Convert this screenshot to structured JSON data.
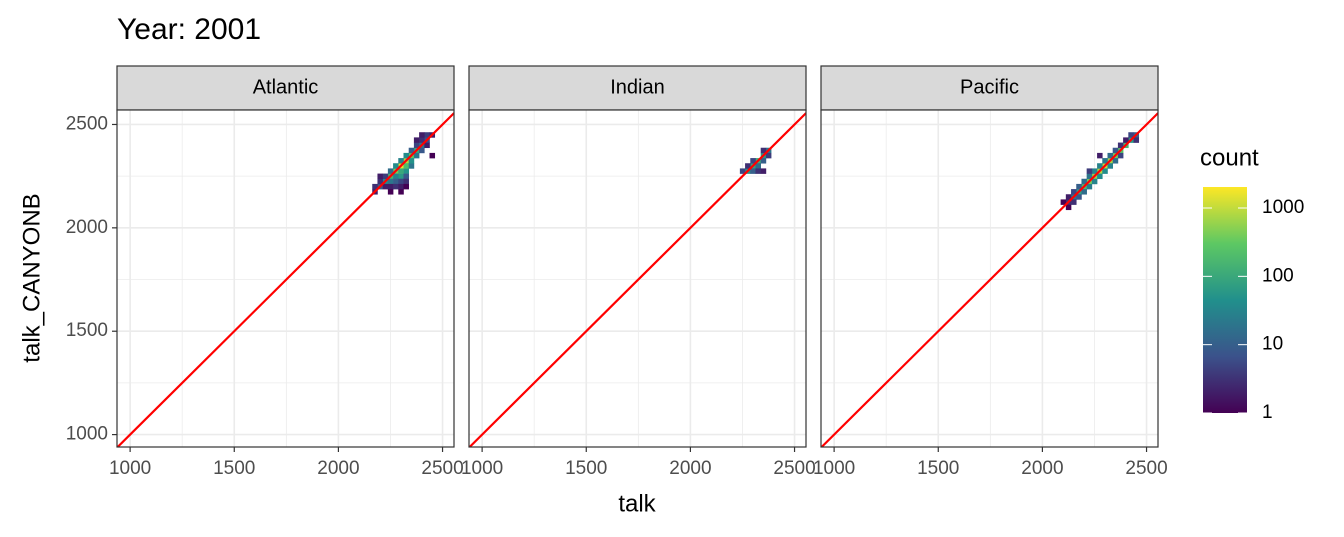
{
  "chart_data": {
    "type": "bin2d",
    "title": "Year: 2001",
    "x_label": "talk",
    "y_label": "talk_CANYONB",
    "xlim": [
      937,
      2555
    ],
    "ylim": [
      940,
      2570
    ],
    "xticks": [
      1000,
      1500,
      2000,
      2500
    ],
    "yticks": [
      1000,
      1500,
      2000,
      2500
    ],
    "xminor": [
      1250,
      1750,
      2250
    ],
    "yminor": [
      1250,
      1750,
      2250
    ],
    "grid": true,
    "binwidth": [
      25,
      25
    ],
    "reference_line": {
      "slope": 1,
      "intercept": 0,
      "color": "#ff0000"
    },
    "color_scale": {
      "title": "count",
      "log": true,
      "limits": [
        1,
        2030
      ],
      "breaks": [
        1,
        10,
        100,
        1000
      ],
      "colors": [
        "#440154",
        "#3b528b",
        "#21908c",
        "#5dc863",
        "#fde725"
      ]
    },
    "facets": [
      {
        "title": "Atlantic",
        "x": [
          2300,
          2325,
          2275,
          2350,
          2250,
          2375,
          2225,
          2400,
          2200,
          2175,
          2175,
          2425,
          2450,
          2425,
          2450,
          2300,
          2325,
          2275,
          2300,
          2325,
          2275,
          2300,
          2250,
          2325,
          2350,
          2350,
          2325,
          2375,
          2350,
          2375,
          2400,
          2400,
          2250,
          2275,
          2300,
          2275,
          2250,
          2300,
          2325,
          2225,
          2200,
          2225,
          2200,
          2325,
          2250,
          2300,
          2375,
          2400,
          2425
        ],
        "y": [
          2300,
          2325,
          2275,
          2350,
          2250,
          2375,
          2225,
          2400,
          2200,
          2200,
          2175,
          2450,
          2450,
          2425,
          2350,
          2250,
          2275,
          2250,
          2275,
          2300,
          2300,
          2325,
          2275,
          2250,
          2300,
          2325,
          2350,
          2350,
          2375,
          2400,
          2375,
          2425,
          2225,
          2225,
          2225,
          2200,
          2200,
          2200,
          2225,
          2250,
          2225,
          2200,
          2250,
          2200,
          2175,
          2175,
          2425,
          2450,
          2400
        ],
        "count": [
          1500,
          800,
          400,
          300,
          150,
          100,
          40,
          20,
          10,
          3,
          2,
          4,
          2,
          6,
          1,
          60,
          50,
          30,
          100,
          200,
          40,
          30,
          15,
          8,
          20,
          50,
          40,
          20,
          10,
          5,
          8,
          3,
          20,
          10,
          5,
          3,
          2,
          2,
          3,
          4,
          3,
          2,
          2,
          1,
          1,
          1,
          2,
          2,
          2
        ]
      },
      {
        "title": "Indian",
        "x": [
          2275,
          2300,
          2325,
          2350,
          2375,
          2325,
          2350,
          2300,
          2325,
          2350,
          2300,
          2350,
          2275,
          2375,
          2250
        ],
        "y": [
          2275,
          2300,
          2325,
          2350,
          2375,
          2300,
          2325,
          2275,
          2275,
          2275,
          2325,
          2375,
          2300,
          2350,
          2275
        ],
        "count": [
          50,
          80,
          120,
          60,
          20,
          15,
          10,
          10,
          3,
          2,
          5,
          3,
          3,
          4,
          5
        ]
      },
      {
        "title": "Pacific",
        "x": [
          2125,
          2150,
          2175,
          2200,
          2225,
          2250,
          2275,
          2300,
          2325,
          2350,
          2375,
          2400,
          2425,
          2450,
          2125,
          2150,
          2175,
          2200,
          2225,
          2250,
          2275,
          2300,
          2325,
          2350,
          2375,
          2400,
          2175,
          2200,
          2225,
          2250,
          2275,
          2300,
          2325,
          2350,
          2375,
          2125,
          2150,
          2100,
          2275,
          2225,
          2425,
          2450
        ],
        "y": [
          2125,
          2150,
          2175,
          2200,
          2225,
          2250,
          2275,
          2300,
          2325,
          2350,
          2375,
          2400,
          2425,
          2450,
          2150,
          2175,
          2200,
          2225,
          2250,
          2275,
          2300,
          2325,
          2350,
          2375,
          2400,
          2425,
          2150,
          2175,
          2200,
          2225,
          2250,
          2275,
          2300,
          2325,
          2350,
          2100,
          2125,
          2125,
          2350,
          2275,
          2450,
          2425
        ],
        "count": [
          3,
          20,
          80,
          200,
          400,
          600,
          800,
          1000,
          700,
          400,
          250,
          150,
          60,
          10,
          2,
          5,
          10,
          15,
          20,
          30,
          30,
          20,
          15,
          8,
          3,
          2,
          8,
          15,
          25,
          30,
          40,
          40,
          30,
          15,
          5,
          1,
          3,
          1,
          2,
          4,
          5,
          3
        ]
      }
    ]
  }
}
